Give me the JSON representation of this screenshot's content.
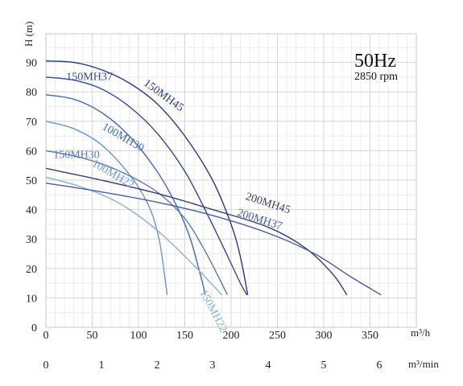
{
  "chart_data": {
    "type": "line",
    "title": "50Hz",
    "subtitle": "2850 rpm",
    "ylabel": "H (m)",
    "xlabel": "m³/h",
    "x2label": "m³/min",
    "xlim": [
      0,
      400
    ],
    "ylim": [
      0,
      100
    ],
    "xticks": [
      0,
      50,
      100,
      150,
      200,
      250,
      300,
      350
    ],
    "yticks": [
      0,
      10,
      20,
      30,
      40,
      50,
      60,
      70,
      80,
      90
    ],
    "x2ticks": [
      0,
      1,
      2,
      3,
      4,
      5,
      6
    ],
    "grid": true,
    "series": [
      {
        "name": "150MH45",
        "color": "#2b3a7a",
        "labelAt": [
          105,
          82.5
        ],
        "labelAngle": 36,
        "points": [
          [
            0,
            90.5
          ],
          [
            30,
            90
          ],
          [
            60,
            87.5
          ],
          [
            90,
            83
          ],
          [
            120,
            76
          ],
          [
            150,
            65
          ],
          [
            180,
            50
          ],
          [
            200,
            35
          ],
          [
            210,
            24
          ],
          [
            218,
            11
          ]
        ]
      },
      {
        "name": "150MH37",
        "color": "#2f4a8c",
        "labelAt": [
          22,
          84
        ],
        "labelAngle": 0,
        "points": [
          [
            0,
            85
          ],
          [
            30,
            84
          ],
          [
            60,
            81
          ],
          [
            90,
            75
          ],
          [
            120,
            66
          ],
          [
            150,
            53
          ],
          [
            175,
            38
          ],
          [
            195,
            25
          ],
          [
            210,
            15
          ],
          [
            217,
            11
          ]
        ]
      },
      {
        "name": "100MH30",
        "color": "#4669a8",
        "labelAt": [
          60,
          67.5
        ],
        "labelAngle": 30,
        "points": [
          [
            0,
            79
          ],
          [
            30,
            77.5
          ],
          [
            60,
            73
          ],
          [
            90,
            65
          ],
          [
            120,
            53
          ],
          [
            140,
            42
          ],
          [
            155,
            31
          ],
          [
            165,
            20
          ],
          [
            170,
            14
          ],
          [
            172,
            11
          ]
        ]
      },
      {
        "name": "100MH22",
        "color": "#6f97c6",
        "labelAt": [
          49,
          55
        ],
        "labelAngle": 30,
        "points": [
          [
            0,
            70
          ],
          [
            30,
            67.5
          ],
          [
            60,
            62
          ],
          [
            90,
            52
          ],
          [
            110,
            42
          ],
          [
            120,
            33
          ],
          [
            125,
            25
          ],
          [
            128,
            18
          ],
          [
            131,
            11
          ]
        ]
      },
      {
        "name": "150MH30",
        "color": "#5a7cb0",
        "labelAt": [
          8,
          57.5
        ],
        "labelAngle": 0,
        "points": [
          [
            0,
            60
          ],
          [
            40,
            57.5
          ],
          [
            80,
            53
          ],
          [
            120,
            46
          ],
          [
            150,
            37
          ],
          [
            170,
            27
          ],
          [
            185,
            18
          ],
          [
            196,
            11
          ]
        ]
      },
      {
        "name": "150MH22",
        "color": "#8bb0d6",
        "labelAt": [
          166,
          12
        ],
        "labelAngle": 62,
        "points": [
          [
            0,
            51
          ],
          [
            40,
            47.5
          ],
          [
            80,
            42
          ],
          [
            120,
            33
          ],
          [
            160,
            21
          ],
          [
            190,
            11
          ]
        ]
      },
      {
        "name": "200MH45",
        "color": "#3a3f6e",
        "labelAt": [
          215,
          43.5
        ],
        "labelAngle": 18,
        "points": [
          [
            0,
            54
          ],
          [
            60,
            50
          ],
          [
            120,
            45.5
          ],
          [
            180,
            40
          ],
          [
            240,
            34
          ],
          [
            280,
            27
          ],
          [
            310,
            18
          ],
          [
            325,
            11
          ]
        ]
      },
      {
        "name": "200MH37",
        "color": "#4a5f96",
        "labelAt": [
          206,
          38
        ],
        "labelAngle": 18,
        "points": [
          [
            0,
            49
          ],
          [
            60,
            46
          ],
          [
            120,
            42.5
          ],
          [
            180,
            38
          ],
          [
            240,
            32
          ],
          [
            290,
            25
          ],
          [
            330,
            17
          ],
          [
            362,
            11
          ]
        ]
      }
    ]
  }
}
